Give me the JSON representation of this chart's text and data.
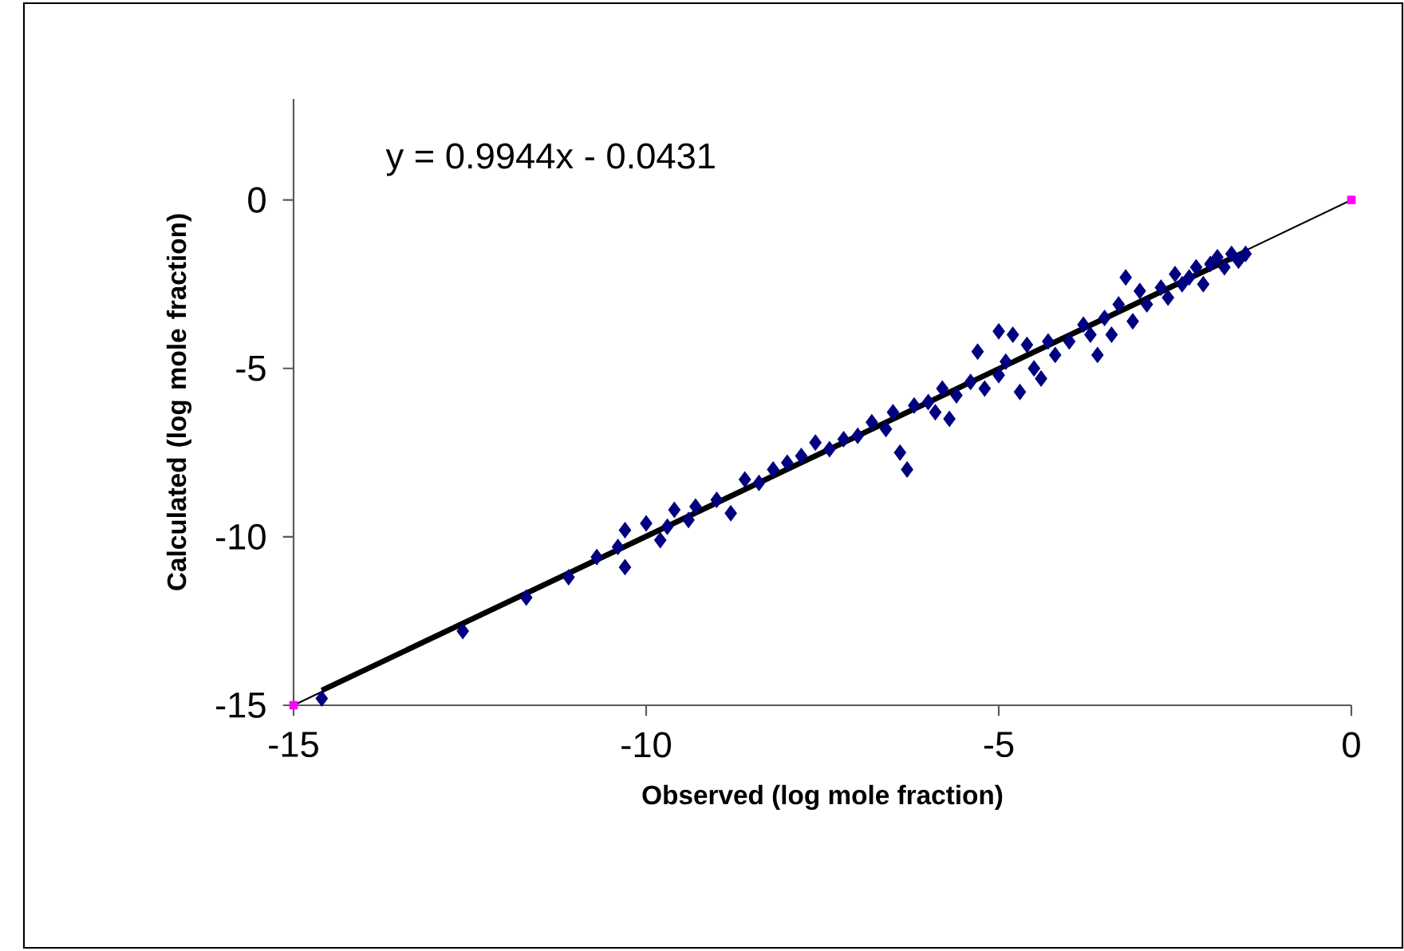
{
  "chart_data": {
    "type": "scatter",
    "xlabel": "Observed (log mole fraction)",
    "ylabel": "Calculated (log mole fraction)",
    "annotations": [
      "y = 0.9944x - 0.0431"
    ],
    "xlim": [
      -15,
      0
    ],
    "ylim": [
      -15,
      3
    ],
    "xticks": [
      -15,
      -10,
      -5,
      0
    ],
    "yticks": [
      -15,
      -10,
      -5,
      0
    ],
    "grid": false,
    "series": [
      {
        "marker": "diamond",
        "color": "#000080",
        "x": [
          -14.6,
          -12.6,
          -11.7,
          -11.1,
          -10.7,
          -10.4,
          -10.3,
          -10.3,
          -10.0,
          -9.8,
          -9.7,
          -9.6,
          -9.4,
          -9.3,
          -9.0,
          -8.8,
          -8.6,
          -8.4,
          -8.2,
          -8.0,
          -7.8,
          -7.6,
          -7.4,
          -7.2,
          -7.0,
          -6.8,
          -6.6,
          -6.5,
          -6.4,
          -6.3,
          -6.2,
          -6.0,
          -5.9,
          -5.8,
          -5.7,
          -5.6,
          -5.4,
          -5.3,
          -5.2,
          -5.0,
          -5.0,
          -4.9,
          -4.8,
          -4.7,
          -4.6,
          -4.5,
          -4.4,
          -4.3,
          -4.2,
          -4.0,
          -3.8,
          -3.7,
          -3.6,
          -3.5,
          -3.4,
          -3.3,
          -3.2,
          -3.1,
          -3.0,
          -2.9,
          -2.7,
          -2.6,
          -2.5,
          -2.4,
          -2.3,
          -2.2,
          -2.1,
          -2.0,
          -1.9,
          -1.8,
          -1.7,
          -1.6,
          -1.5
        ],
        "values": [
          -14.8,
          -12.8,
          -11.8,
          -11.2,
          -10.6,
          -10.3,
          -10.9,
          -9.8,
          -9.6,
          -10.1,
          -9.7,
          -9.2,
          -9.5,
          -9.1,
          -8.9,
          -9.3,
          -8.3,
          -8.4,
          -8.0,
          -7.8,
          -7.6,
          -7.2,
          -7.4,
          -7.1,
          -7.0,
          -6.6,
          -6.8,
          -6.3,
          -7.5,
          -8.0,
          -6.1,
          -6.0,
          -6.3,
          -5.6,
          -6.5,
          -5.8,
          -5.4,
          -4.5,
          -5.6,
          -3.9,
          -5.2,
          -4.8,
          -4.0,
          -5.7,
          -4.3,
          -5.0,
          -5.3,
          -4.2,
          -4.6,
          -4.2,
          -3.7,
          -4.0,
          -4.6,
          -3.5,
          -4.0,
          -3.1,
          -2.3,
          -3.6,
          -2.7,
          -3.1,
          -2.6,
          -2.9,
          -2.2,
          -2.5,
          -2.3,
          -2.0,
          -2.5,
          -1.9,
          -1.7,
          -2.0,
          -1.6,
          -1.8,
          -1.6
        ]
      },
      {
        "type": "line",
        "marker": "none",
        "color": "#000000",
        "x": [
          -14.6,
          -1.5
        ],
        "values": [
          -14.56,
          -1.53
        ]
      },
      {
        "type": "line",
        "marker": "square",
        "color": "#ff00ff",
        "x": [
          -15,
          0
        ],
        "values": [
          -15,
          0
        ]
      }
    ]
  }
}
